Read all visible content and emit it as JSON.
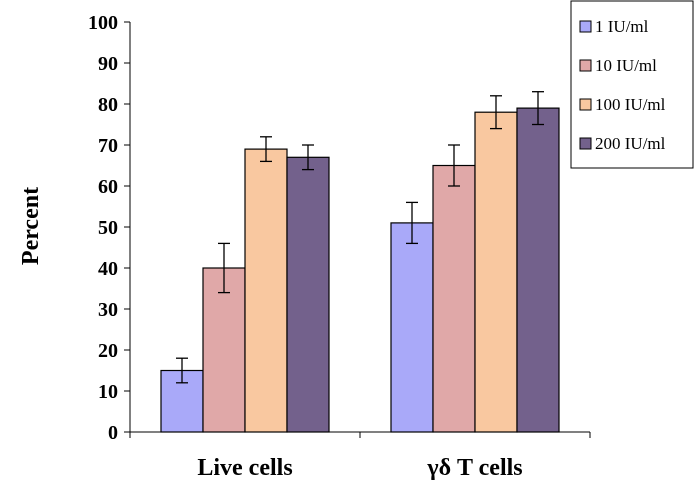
{
  "chart_data": {
    "type": "bar",
    "categories": [
      "Live cells",
      "γδ T cells"
    ],
    "series": [
      {
        "name": "1 IU/ml",
        "color": "#a9a9f9",
        "values": [
          15,
          51
        ],
        "errors": [
          3,
          5
        ]
      },
      {
        "name": "10 IU/ml",
        "color": "#e0a8a8",
        "values": [
          40,
          65
        ],
        "errors": [
          6,
          5
        ]
      },
      {
        "name": "100 IU/ml",
        "color": "#f9c8a0",
        "values": [
          69,
          78
        ],
        "errors": [
          3,
          4
        ]
      },
      {
        "name": "200 IU/ml",
        "color": "#73618c",
        "values": [
          67,
          79
        ],
        "errors": [
          3,
          4
        ]
      }
    ],
    "ylabel": "Percent",
    "xlabel": "",
    "ylim": [
      0,
      100
    ],
    "yticks": [
      0,
      10,
      20,
      30,
      40,
      50,
      60,
      70,
      80,
      90,
      100
    ],
    "grid": false,
    "legend_position": "top-right"
  }
}
